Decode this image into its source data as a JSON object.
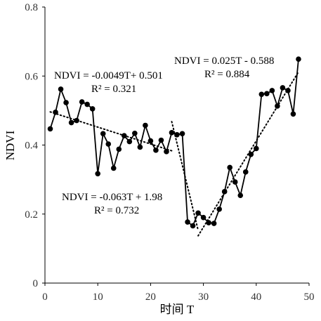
{
  "chart_data": {
    "type": "line",
    "title": "",
    "xlabel": "时间 T",
    "ylabel": "NDVI",
    "xlim": [
      0,
      50
    ],
    "ylim": [
      0,
      0.8
    ],
    "xticks": [
      "0",
      "10",
      "20",
      "30",
      "40",
      "50"
    ],
    "yticks": [
      "0",
      "0.2",
      "0.4",
      "0.6",
      "0.8"
    ],
    "xtick_values": [
      0,
      10,
      20,
      30,
      40,
      50
    ],
    "ytick_values": [
      0,
      0.2,
      0.4,
      0.6,
      0.8
    ],
    "grid": false,
    "colors": {
      "series": "#000000",
      "axis": "#000000"
    },
    "series": [
      {
        "x": [
          1,
          2,
          3,
          4,
          5,
          6,
          7,
          8,
          9,
          10,
          11,
          12,
          13,
          14,
          15,
          16,
          17,
          18,
          19,
          20,
          21,
          22,
          23,
          24,
          25,
          26,
          27,
          28,
          29,
          30,
          31,
          32,
          33,
          34,
          35,
          36,
          37,
          38,
          39,
          40,
          41,
          42,
          43,
          44,
          45,
          46,
          47,
          48
        ],
        "values": [
          0.447,
          0.495,
          0.562,
          0.523,
          0.465,
          0.471,
          0.525,
          0.518,
          0.505,
          0.317,
          0.433,
          0.403,
          0.333,
          0.388,
          0.427,
          0.41,
          0.434,
          0.394,
          0.457,
          0.412,
          0.385,
          0.414,
          0.381,
          0.436,
          0.43,
          0.433,
          0.177,
          0.166,
          0.203,
          0.19,
          0.175,
          0.173,
          0.214,
          0.265,
          0.335,
          0.293,
          0.254,
          0.322,
          0.373,
          0.39,
          0.547,
          0.549,
          0.558,
          0.513,
          0.566,
          0.558,
          0.49,
          0.649
        ]
      }
    ],
    "trendlines": [
      {
        "x_range": [
          1,
          24
        ],
        "slope": -0.0049,
        "intercept": 0.501,
        "style": "dotted"
      },
      {
        "x_range": [
          24,
          29
        ],
        "slope": -0.063,
        "intercept": 1.98,
        "style": "dotted"
      },
      {
        "x_range": [
          29,
          48
        ],
        "slope": 0.025,
        "intercept": -0.588,
        "style": "dotted"
      }
    ],
    "annotations": [
      {
        "id": "eq1",
        "text": "NDVI = -0.0049T+ 0.501"
      },
      {
        "id": "r1",
        "text": "R² = 0.321"
      },
      {
        "id": "eq2",
        "text": "NDVI = 0.025T - 0.588"
      },
      {
        "id": "r2",
        "text": "R² = 0.884"
      },
      {
        "id": "eq3",
        "text": "NDVI = -0.063T + 1.98"
      },
      {
        "id": "r3",
        "text": "R² = 0.732"
      }
    ]
  }
}
